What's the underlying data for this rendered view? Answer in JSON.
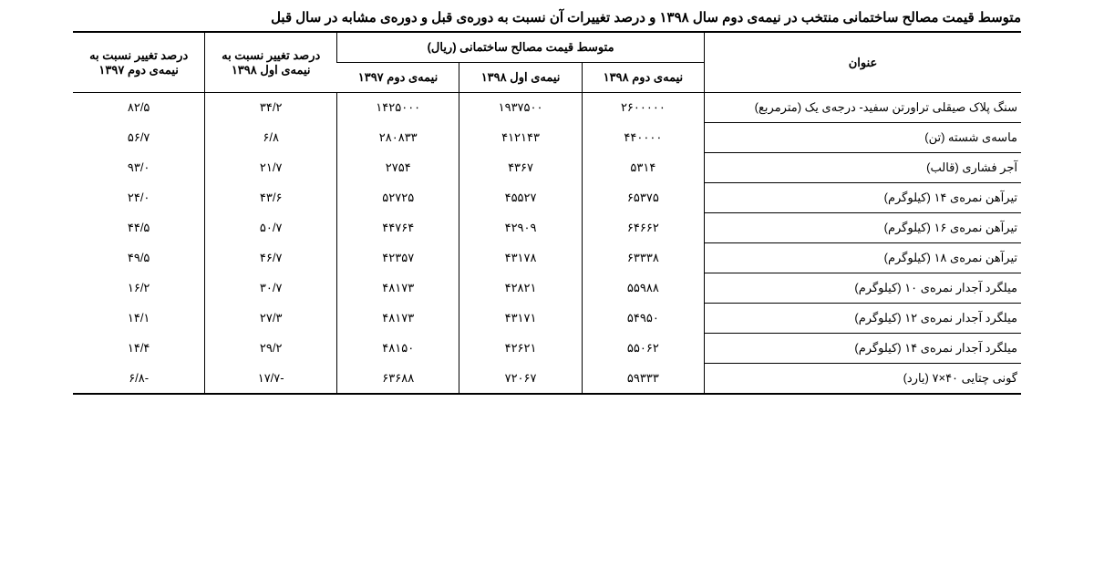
{
  "title": "متوسط قیمت مصالح ساختمانی منتخب در نیمه‌ی دوم سال ۱۳۹۸ و درصد تغییرات آن نسبت به دوره‌ی قبل و دوره‌ی مشابه در سال قبل",
  "background_color": "#ffffff",
  "text_color": "#000000",
  "border_color": "#000000",
  "font_family": "Tahoma",
  "title_fontsize": 15,
  "cell_fontsize": 13,
  "columns": {
    "name_header": "عنوان",
    "group_header": "متوسط قیمت مصالح ساختمانی (ریال)",
    "sub_headers": [
      "نیمه‌ی دوم ۱۳۹۸",
      "نیمه‌ی اول ۱۳۹۸",
      "نیمه‌ی دوم ۱۳۹۷"
    ],
    "pct_headers": [
      "درصد تغییر نسبت به نیمه‌ی اول ۱۳۹۸",
      "درصد تغییر نسبت به نیمه‌ی دوم ۱۳۹۷"
    ]
  },
  "rows": [
    {
      "name": "سنگ پلاک صیقلی تراورتن سفید- درجه‌ی یک (مترمربع)",
      "v": [
        "۲۶۰۰۰۰۰",
        "۱۹۳۷۵۰۰",
        "۱۴۲۵۰۰۰"
      ],
      "p": [
        "۳۴/۲",
        "۸۲/۵"
      ]
    },
    {
      "name": "ماسه‌ی شسته (تن)",
      "v": [
        "۴۴۰۰۰۰",
        "۴۱۲۱۴۳",
        "۲۸۰۸۳۳"
      ],
      "p": [
        "۶/۸",
        "۵۶/۷"
      ]
    },
    {
      "name": "آجر فشاری (قالب)",
      "v": [
        "۵۳۱۴",
        "۴۳۶۷",
        "۲۷۵۴"
      ],
      "p": [
        "۲۱/۷",
        "۹۳/۰"
      ]
    },
    {
      "name": "تیرآهن نمره‌ی ۱۴ (کیلوگرم)",
      "v": [
        "۶۵۳۷۵",
        "۴۵۵۲۷",
        "۵۲۷۲۵"
      ],
      "p": [
        "۴۳/۶",
        "۲۴/۰"
      ]
    },
    {
      "name": "تیرآهن نمره‌ی ۱۶ (کیلوگرم)",
      "v": [
        "۶۴۶۶۲",
        "۴۲۹۰۹",
        "۴۴۷۶۴"
      ],
      "p": [
        "۵۰/۷",
        "۴۴/۵"
      ]
    },
    {
      "name": "تیرآهن نمره‌ی ۱۸ (کیلوگرم)",
      "v": [
        "۶۳۳۳۸",
        "۴۳۱۷۸",
        "۴۲۳۵۷"
      ],
      "p": [
        "۴۶/۷",
        "۴۹/۵"
      ]
    },
    {
      "name": "میلگرد آجدار نمره‌ی ۱۰ (کیلوگرم)",
      "v": [
        "۵۵۹۸۸",
        "۴۲۸۲۱",
        "۴۸۱۷۳"
      ],
      "p": [
        "۳۰/۷",
        "۱۶/۲"
      ]
    },
    {
      "name": "میلگرد آجدار نمره‌ی ۱۲ (کیلوگرم)",
      "v": [
        "۵۴۹۵۰",
        "۴۳۱۷۱",
        "۴۸۱۷۳"
      ],
      "p": [
        "۲۷/۳",
        "۱۴/۱"
      ]
    },
    {
      "name": "میلگرد آجدار نمره‌ی ۱۴ (کیلوگرم)",
      "v": [
        "۵۵۰۶۲",
        "۴۲۶۲۱",
        "۴۸۱۵۰"
      ],
      "p": [
        "۲۹/۲",
        "۱۴/۴"
      ]
    },
    {
      "name": "گونی چتایی ۴۰×۷ (یارد)",
      "v": [
        "۵۹۳۳۳",
        "۷۲۰۶۷",
        "۶۳۶۸۸"
      ],
      "p": [
        "-۱۷/۷",
        "-۶/۸"
      ]
    }
  ]
}
